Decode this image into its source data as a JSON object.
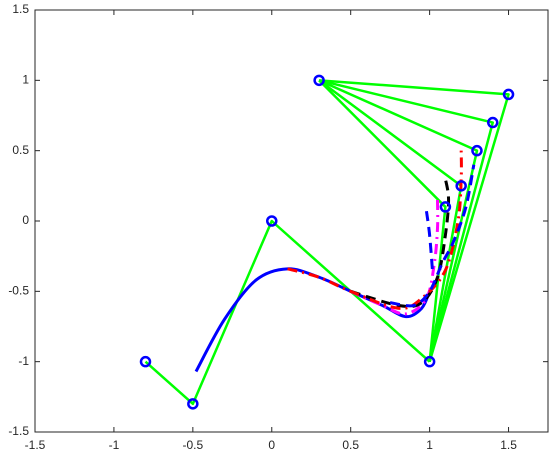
{
  "chart_data": {
    "type": "line",
    "xlim": [
      -1.5,
      1.75
    ],
    "ylim": [
      -1.5,
      1.5
    ],
    "xticks": [
      -1.5,
      -1,
      -0.5,
      0,
      0.5,
      1,
      1.5
    ],
    "yticks": [
      -1.5,
      -1,
      -0.5,
      0,
      0.5,
      1,
      1.5
    ],
    "series": [
      {
        "color": "#00ff00",
        "style": "solid",
        "x": [
          -0.8,
          -0.5,
          0,
          1
        ],
        "y": [
          -1,
          -1.3,
          0,
          -1
        ]
      },
      {
        "color": "#00ff00",
        "style": "solid",
        "x": [
          1,
          1.1,
          0.3
        ],
        "y": [
          -1,
          0.1,
          1
        ]
      },
      {
        "color": "#00ff00",
        "style": "solid",
        "x": [
          1,
          1.2,
          0.3
        ],
        "y": [
          -1,
          0.25,
          1
        ]
      },
      {
        "color": "#00ff00",
        "style": "solid",
        "x": [
          1,
          1.3,
          0.3
        ],
        "y": [
          -1,
          0.5,
          1
        ]
      },
      {
        "color": "#00ff00",
        "style": "solid",
        "x": [
          1,
          1.4,
          0.3
        ],
        "y": [
          -1,
          0.7,
          1
        ]
      },
      {
        "color": "#00ff00",
        "style": "solid",
        "x": [
          1,
          1.5,
          0.3
        ],
        "y": [
          -1,
          0.9,
          1
        ]
      },
      {
        "color": "#0000ff",
        "style": "solid",
        "smooth": true,
        "x": [
          -0.48,
          -0.3,
          -0.1,
          0.1,
          0.3,
          0.5,
          0.7,
          0.85,
          0.95,
          1.0
        ],
        "y": [
          -1.07,
          -0.7,
          -0.42,
          -0.34,
          -0.4,
          -0.5,
          -0.6,
          -0.68,
          -0.62,
          -0.5
        ]
      },
      {
        "color": "#ff00ff",
        "style": "dashdot",
        "smooth": true,
        "x": [
          0.5,
          0.7,
          0.85,
          0.98,
          1.03,
          1.05,
          1.05
        ],
        "y": [
          -0.5,
          -0.6,
          -0.66,
          -0.55,
          -0.3,
          -0.05,
          0.15
        ]
      },
      {
        "color": "#000000",
        "style": "dashed",
        "smooth": true,
        "x": [
          0.5,
          0.8,
          0.95,
          1.05,
          1.1,
          1.12,
          1.1
        ],
        "y": [
          -0.5,
          -0.6,
          -0.58,
          -0.4,
          -0.1,
          0.15,
          0.3
        ]
      },
      {
        "color": "#ff0000",
        "style": "dashdot",
        "smooth": true,
        "x": [
          0.1,
          0.3,
          0.5,
          0.8,
          0.95,
          1.1,
          1.18,
          1.2,
          1.2
        ],
        "y": [
          -0.34,
          -0.4,
          -0.5,
          -0.62,
          -0.55,
          -0.35,
          0,
          0.3,
          0.5
        ]
      },
      {
        "color": "#0000ff",
        "style": "dashed",
        "smooth": true,
        "x": [
          0.75,
          0.9,
          1.0,
          1.08,
          1.15,
          1.23,
          1.28,
          null,
          0.98,
          1.0,
          1.02
        ],
        "y": [
          -0.58,
          -0.6,
          -0.5,
          -0.3,
          -0.15,
          0.1,
          0.4,
          null,
          0.07,
          -0.1,
          -0.38
        ]
      },
      {
        "color": "#0000ff",
        "style": "marker",
        "x": [
          -0.8,
          -0.5,
          0,
          1,
          1.1,
          1.2,
          1.3,
          1.4,
          1.5,
          0.3
        ],
        "y": [
          -1,
          -1.3,
          0,
          -1,
          0.1,
          0.25,
          0.5,
          0.7,
          0.9,
          1
        ]
      }
    ]
  }
}
